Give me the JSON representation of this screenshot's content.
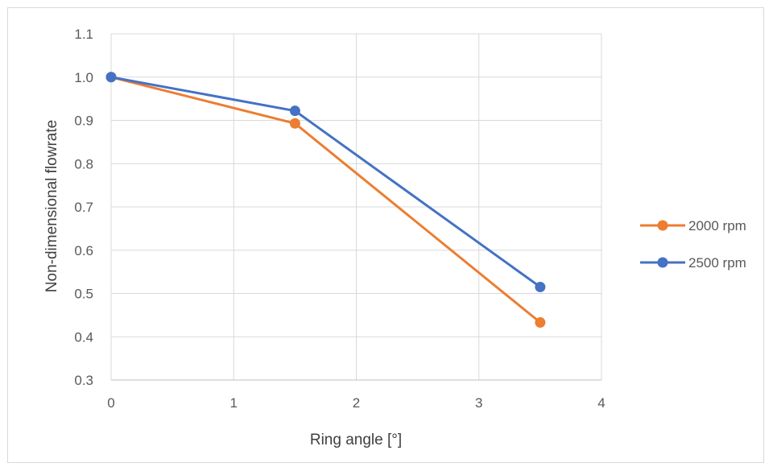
{
  "chart_data": {
    "type": "scatter",
    "title": "",
    "xlabel": "Ring angle [°]",
    "ylabel": "Non-dimensional flowrate",
    "xlim": [
      0,
      4
    ],
    "ylim": [
      0.3,
      1.1
    ],
    "x_ticks": [
      "0",
      "1",
      "2",
      "3",
      "4"
    ],
    "y_ticks": [
      "0.3",
      "0.4",
      "0.5",
      "0.6",
      "0.7",
      "0.8",
      "0.9",
      "1.0",
      "1.1"
    ],
    "grid": true,
    "legend_position": "right",
    "series": [
      {
        "name": "2000 rpm",
        "color": "#ED7D31",
        "x": [
          0,
          1.5,
          3.5
        ],
        "y": [
          1.0,
          0.893,
          0.433
        ]
      },
      {
        "name": "2500 rpm",
        "color": "#4472C4",
        "x": [
          0,
          1.5,
          3.5
        ],
        "y": [
          1.0,
          0.922,
          0.515
        ]
      }
    ]
  }
}
